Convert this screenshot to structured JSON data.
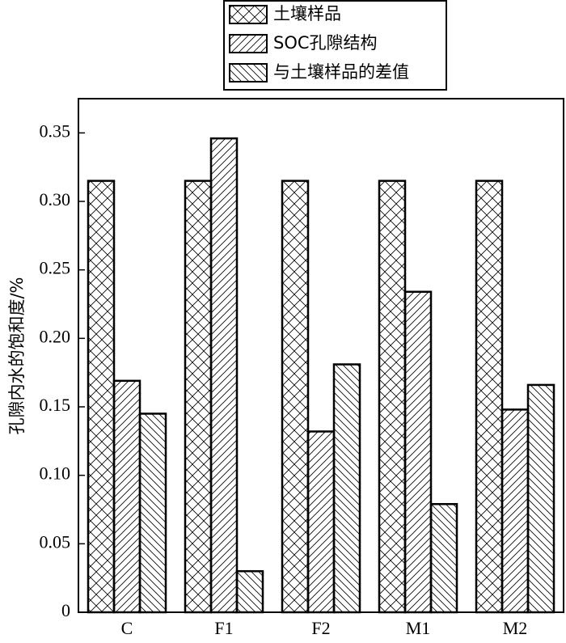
{
  "chart_data": {
    "type": "bar",
    "y_label": "孔隙内水的饱和度/%",
    "categories": [
      "C",
      "F1",
      "F2",
      "M1",
      "M2"
    ],
    "series": [
      {
        "name": "土壤样品",
        "color": "#000000",
        "hatch": "x",
        "values": [
          0.315,
          0.315,
          0.315,
          0.315,
          0.315
        ]
      },
      {
        "name": "SOC孔隙结构",
        "color": "#000000",
        "hatch": "/",
        "values": [
          0.169,
          0.346,
          0.132,
          0.234,
          0.148
        ]
      },
      {
        "name": "与土壤样品的差值",
        "color": "#000000",
        "hatch": "\\",
        "values": [
          0.145,
          0.03,
          0.181,
          0.079,
          0.166
        ]
      }
    ],
    "ylim": [
      0,
      0.375
    ],
    "yticks": [
      0,
      0.05,
      {
        "value": 0.1,
        "label": "0.10"
      },
      0.15,
      {
        "value": 0.2,
        "label": "0.20"
      },
      0.25,
      {
        "value": 0.3,
        "label": "0.30"
      },
      0.35
    ],
    "legend": "top"
  }
}
